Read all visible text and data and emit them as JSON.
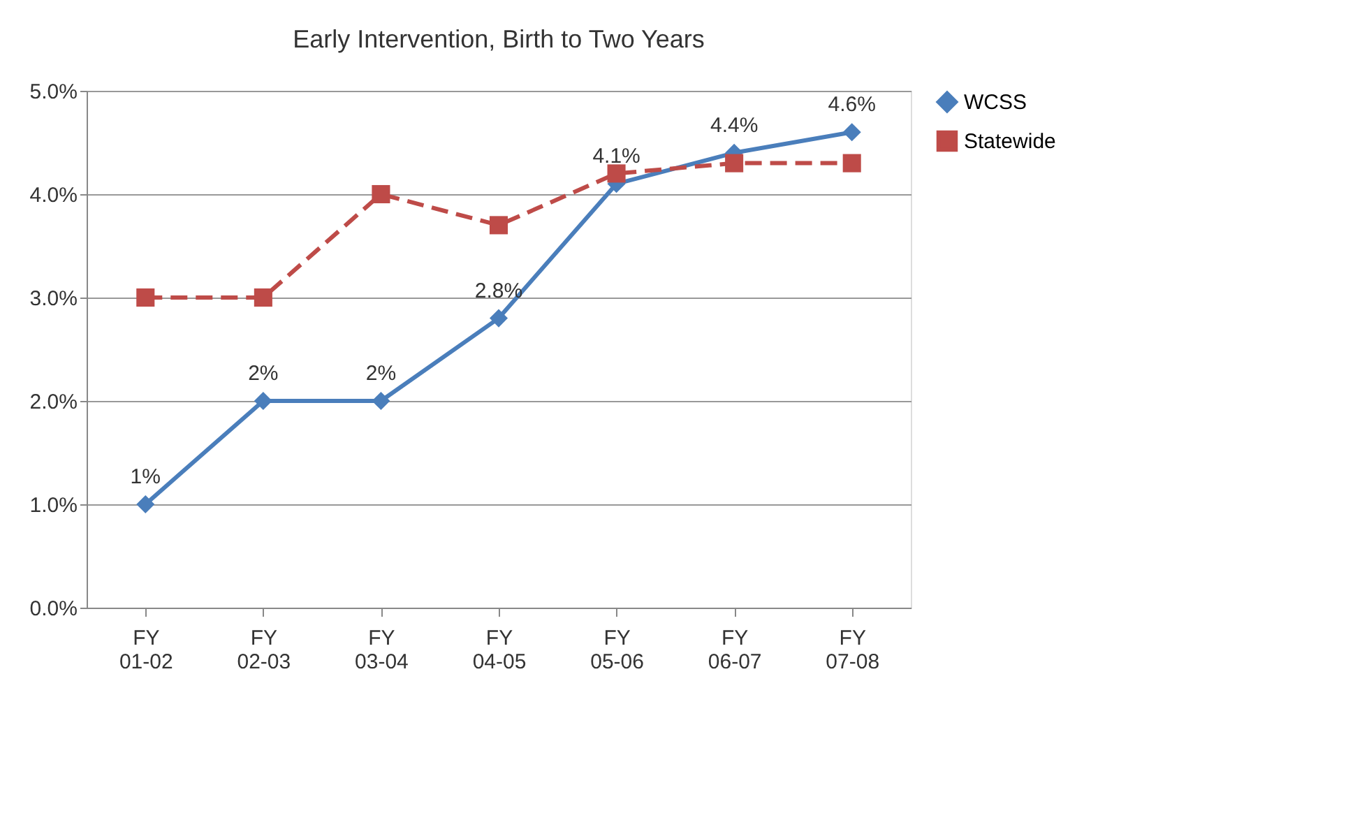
{
  "chart_data": {
    "type": "line",
    "title": "Early Intervention, Birth to Two Years",
    "categories": [
      "FY 01-02",
      "FY 02-03",
      "FY 03-04",
      "FY 04-05",
      "FY 05-06",
      "FY 06-07",
      "FY 07-08"
    ],
    "series": [
      {
        "name": "WCSS",
        "color": "#4a7ebb",
        "values": [
          1.0,
          2.0,
          2.0,
          2.8,
          4.1,
          4.4,
          4.6
        ],
        "marker": "diamond",
        "line_style": "solid",
        "value_labels": [
          "1%",
          "2%",
          "2%",
          "2.8%",
          "4.1%",
          "4.4%",
          "4.6%"
        ]
      },
      {
        "name": "Statewide",
        "color": "#be4b48",
        "values": [
          3.0,
          3.0,
          4.0,
          3.7,
          4.2,
          4.3,
          4.3
        ],
        "marker": "square",
        "line_style": "dashed"
      }
    ],
    "ylim": [
      0,
      5
    ],
    "yticks": [
      {
        "value": 0,
        "label": "0.0%"
      },
      {
        "value": 1,
        "label": "1.0%"
      },
      {
        "value": 2,
        "label": "2.0%"
      },
      {
        "value": 3,
        "label": "3.0%"
      },
      {
        "value": 4,
        "label": "4.0%"
      },
      {
        "value": 5,
        "label": "5.0%"
      }
    ],
    "grid": "y",
    "legend": "right"
  }
}
